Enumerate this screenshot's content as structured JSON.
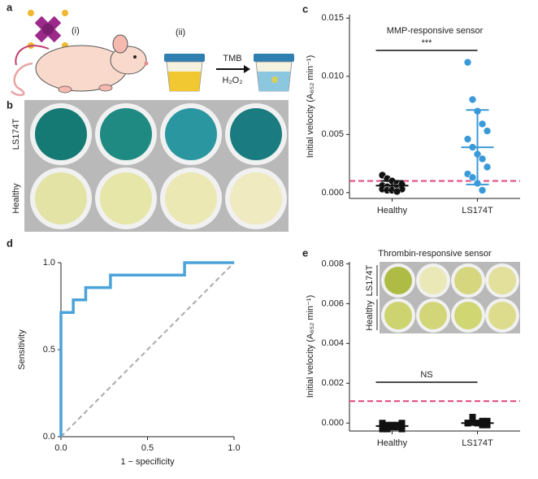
{
  "panel_labels": [
    "a",
    "b",
    "c",
    "d",
    "e"
  ],
  "panel_a": {
    "step_1": "(i)",
    "step_2": "(ii)",
    "reagent": "TMB",
    "oxidant": "H₂O₂"
  },
  "panel_b": {
    "rows": [
      "LS174T",
      "Healthy"
    ]
  },
  "panel_e_inset": {
    "rows": [
      "LS174T",
      "Healthy"
    ]
  },
  "chart_data": [
    {
      "type": "dot",
      "title": "MMP-responsive sensor",
      "y_label": "Initial velocity (A₆₅₂ min⁻¹)",
      "categories": [
        "Healthy",
        "LS174T"
      ],
      "points": [
        [
          0.0015,
          0.0012,
          0.001,
          0.0008,
          0.0007,
          0.0006,
          0.0005,
          0.0004,
          0.0004,
          0.0003,
          0.0003,
          0.0002,
          0.0002,
          0.0001
        ],
        [
          0.0112,
          0.008,
          0.007,
          0.0059,
          0.0053,
          0.0046,
          0.0039,
          0.0033,
          0.0029,
          0.0022,
          0.0016,
          0.0013,
          0.0008,
          0.0002
        ]
      ],
      "means": [
        0.0006,
        0.0039
      ],
      "sds": [
        0.0004,
        0.0032
      ],
      "colors": [
        "#111111",
        "#3a9ad9"
      ],
      "marker": "circle",
      "threshold": 0.001,
      "threshold_color": "#e0457b",
      "significance": "***",
      "ylim": [
        -0.0005,
        0.0153
      ],
      "yticks": [
        {
          "value": 0,
          "label": "0.000"
        },
        {
          "value": 0.005,
          "label": "0.005"
        },
        {
          "value": 0.01,
          "label": "0.010"
        },
        {
          "value": 0.015,
          "label": "0.015"
        }
      ]
    },
    {
      "type": "line",
      "x_label": "1 − specificity",
      "y_label": "Sensitivity",
      "x": [
        0,
        0,
        0.071,
        0.071,
        0.143,
        0.143,
        0.286,
        0.286,
        0.714,
        0.714,
        1.0
      ],
      "y": [
        0,
        0.714,
        0.714,
        0.786,
        0.786,
        0.857,
        0.857,
        0.929,
        0.929,
        1.0,
        1.0
      ],
      "color": "#4ba3d9",
      "reference_color": "#aaaaaa",
      "xlim": [
        0,
        1
      ],
      "ylim": [
        0,
        1
      ],
      "xticks": [
        {
          "value": 0,
          "label": "0.0"
        },
        {
          "value": 0.5,
          "label": "0.5"
        },
        {
          "value": 1,
          "label": "1.0"
        }
      ],
      "yticks": [
        {
          "value": 0,
          "label": "0.0"
        },
        {
          "value": 0.5,
          "label": "0.5"
        },
        {
          "value": 1,
          "label": "1.0"
        }
      ]
    },
    {
      "type": "dot",
      "title": "Thrombin-responsive sensor",
      "y_label": "Initial velocity (A₆₅₂ min⁻¹)",
      "categories": [
        "Healthy",
        "LS174T"
      ],
      "points": [
        [
          -0.0002,
          -0.0003,
          -0.0001,
          -0.0002,
          0.0,
          -0.0003,
          -0.0001,
          -0.0002,
          -0.0001,
          -0.0003,
          0.0
        ],
        [
          0.0,
          0.0001,
          0.0,
          -0.0001,
          0.0001,
          0.0,
          0.0003,
          0.0,
          0.0001,
          -0.0001,
          0.0
        ]
      ],
      "means": [
        -0.00015,
        0.0
      ],
      "sds": [
        0.0001,
        0.0001
      ],
      "colors": [
        "#111111",
        "#111111"
      ],
      "marker": "square",
      "threshold": 0.0011,
      "threshold_color": "#e0457b",
      "significance": "NS",
      "ylim": [
        -0.0004,
        0.0081
      ],
      "yticks": [
        {
          "value": 0,
          "label": "0.000"
        },
        {
          "value": 0.002,
          "label": "0.002"
        },
        {
          "value": 0.004,
          "label": "0.004"
        },
        {
          "value": 0.006,
          "label": "0.006"
        },
        {
          "value": 0.008,
          "label": "0.008"
        }
      ]
    }
  ]
}
